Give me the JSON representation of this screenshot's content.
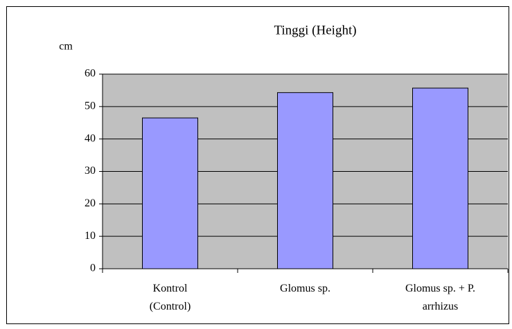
{
  "chart_data": {
    "type": "bar",
    "title": "Tinggi (Height)",
    "y_label": "cm",
    "categories": [
      "Kontrol (Control)",
      "Glomus sp.",
      "Glomus sp. + P. arrhizus"
    ],
    "values": [
      46.5,
      54.3,
      55.7
    ],
    "color": "#9999ff",
    "ylim": [
      0,
      60
    ],
    "yticks": [
      0,
      10,
      20,
      30,
      40,
      50,
      60
    ],
    "grid": true
  }
}
